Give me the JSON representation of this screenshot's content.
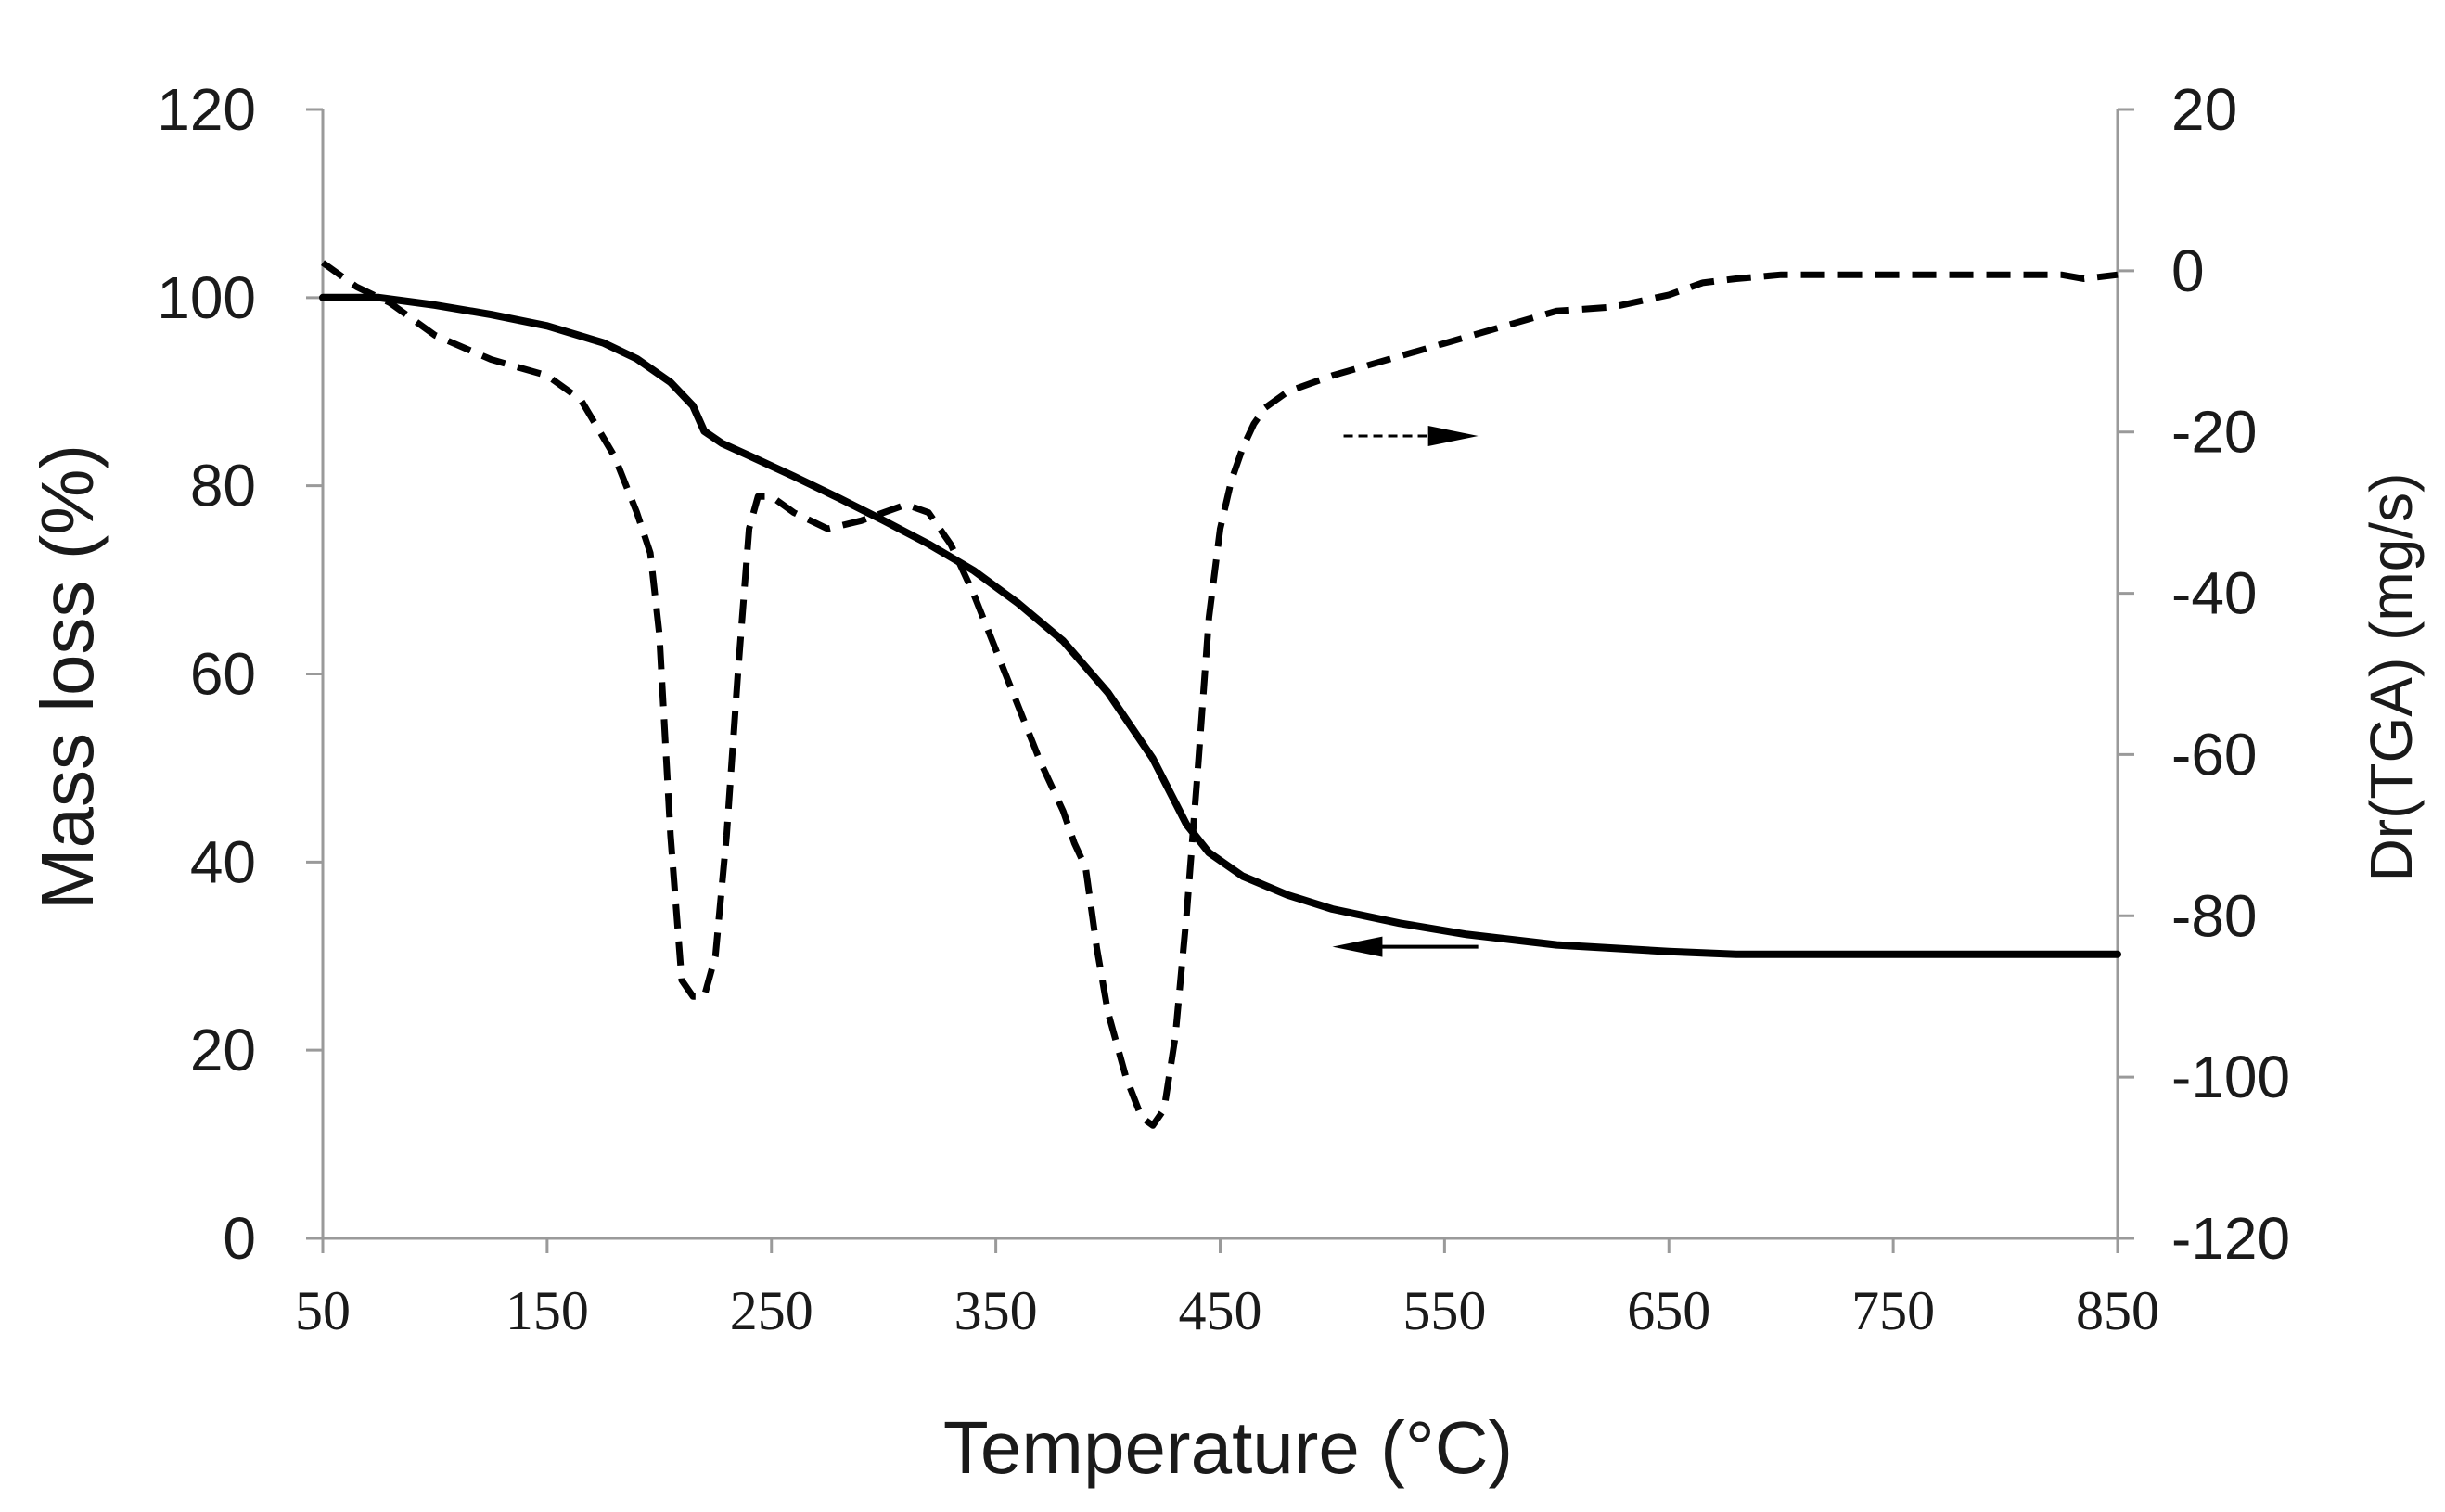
{
  "chart_data": {
    "type": "line",
    "title": "",
    "xlabel": "Temperature (°C)",
    "ylabel_left": "Mass loss (%)",
    "ylabel_right": "Dr(TGA) (mg/s)",
    "xlim": [
      50,
      850
    ],
    "ylim_left": [
      0,
      120
    ],
    "ylim_right": [
      -120,
      20
    ],
    "x_ticks": [
      50,
      150,
      250,
      350,
      450,
      550,
      650,
      750,
      850
    ],
    "x_tick_labels": [
      "50",
      "150",
      "250",
      "350",
      "450",
      "550",
      "650",
      "750",
      "850"
    ],
    "y_left_ticks": [
      0,
      20,
      40,
      60,
      80,
      100,
      120
    ],
    "y_left_tick_labels": [
      "0",
      "20",
      "40",
      "60",
      "80",
      "100",
      "120"
    ],
    "y_right_ticks": [
      -120,
      -100,
      -80,
      -60,
      -40,
      -20,
      0,
      20
    ],
    "y_right_tick_labels": [
      "-120",
      "-100",
      "-80",
      "-60",
      "-40",
      "-20",
      "0",
      "20"
    ],
    "grid": false,
    "series": [
      {
        "name": "Mass loss",
        "axis": "left",
        "style": "solid",
        "color": "#000000",
        "x": [
          50,
          75,
          100,
          125,
          150,
          175,
          190,
          205,
          215,
          220,
          228,
          240,
          260,
          280,
          300,
          320,
          340,
          360,
          380,
          400,
          420,
          435,
          445,
          460,
          480,
          500,
          530,
          560,
          600,
          650,
          680,
          700,
          750,
          800,
          850
        ],
        "y": [
          100,
          100,
          99.2,
          98.2,
          97.0,
          95.2,
          93.5,
          91.0,
          88.5,
          85.8,
          84.5,
          83.2,
          81.0,
          78.7,
          76.3,
          73.8,
          71.0,
          67.5,
          63.5,
          58.0,
          51.0,
          44.0,
          41.0,
          38.5,
          36.5,
          35.0,
          33.5,
          32.3,
          31.2,
          30.5,
          30.2,
          30.2,
          30.2,
          30.2,
          30.2
        ]
      },
      {
        "name": "Dr(TGA)",
        "axis": "right",
        "style": "dashed",
        "color": "#000000",
        "x": [
          50,
          65,
          80,
          100,
          125,
          150,
          165,
          180,
          190,
          196,
          200,
          205,
          210,
          215,
          220,
          225,
          230,
          235,
          240,
          244,
          250,
          260,
          275,
          290,
          300,
          310,
          320,
          330,
          340,
          350,
          360,
          370,
          380,
          385,
          390,
          395,
          400,
          408,
          415,
          420,
          425,
          430,
          435,
          440,
          445,
          450,
          455,
          460,
          465,
          470,
          480,
          500,
          525,
          550,
          575,
          600,
          625,
          650,
          665,
          680,
          700,
          750,
          800,
          825,
          835,
          850
        ],
        "y": [
          1,
          -2,
          -4,
          -8,
          -11,
          -13,
          -16,
          -23,
          -30,
          -35,
          -45,
          -70,
          -88,
          -90,
          -90,
          -85,
          -70,
          -50,
          -32,
          -28,
          -28,
          -30,
          -32,
          -31,
          -30,
          -29,
          -30,
          -34,
          -40,
          -47,
          -54,
          -61,
          -67,
          -71,
          -74,
          -84,
          -92,
          -100,
          -105,
          -106,
          -104,
          -95,
          -80,
          -62,
          -43,
          -32,
          -26,
          -22,
          -19,
          -17,
          -15,
          -13,
          -11,
          -9,
          -7,
          -5,
          -4.5,
          -3,
          -1.5,
          -1,
          -0.5,
          -0.5,
          -0.5,
          -0.5,
          -1,
          -0.5
        ]
      }
    ],
    "annotations": [
      {
        "type": "arrow",
        "style": "dashed",
        "direction": "right",
        "refers_to": "Dr(TGA)",
        "x_from": 505,
        "x_to": 565,
        "y_right": -20.5
      },
      {
        "type": "arrow",
        "style": "solid",
        "direction": "left",
        "refers_to": "Mass loss",
        "x_from": 565,
        "x_to": 500,
        "y_left": 31
      }
    ]
  }
}
